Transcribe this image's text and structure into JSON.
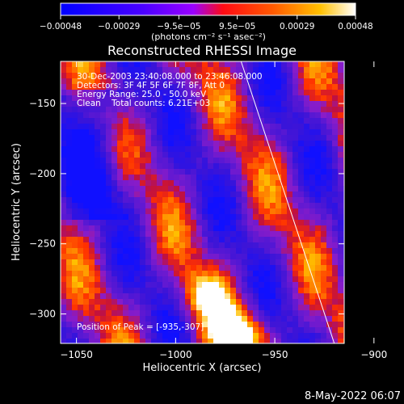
{
  "chart_data": {
    "type": "heatmap",
    "title": "Reconstructed RHESSI Image",
    "xlabel": "Heliocentric X (arcsec)",
    "ylabel": "Heliocentric Y (arcsec)",
    "xlim": [
      -1058,
      -915
    ],
    "ylim": [
      -321,
      -120
    ],
    "x_ticks": [
      -1050,
      -1000,
      -950,
      -900
    ],
    "x_tick_labels": [
      "−1050",
      "−1000",
      "−950",
      "−900"
    ],
    "y_ticks": [
      -150,
      -200,
      -250,
      -300
    ],
    "y_tick_labels": [
      "−150",
      "−200",
      "−250",
      "−300"
    ],
    "colorbar": {
      "range": [
        -0.00048,
        0.00048
      ],
      "ticks": [
        -0.00048,
        -0.00029,
        -9.5e-05,
        9.5e-05,
        0.00029,
        0.00048
      ],
      "tick_labels": [
        "−0.00048",
        "−0.00029",
        "−9.5e−05",
        "9.5e−05",
        "0.00029",
        "0.00048"
      ],
      "unit_label": "(photons cm⁻² s⁻¹ asec⁻²)",
      "colors": [
        "#0000ff",
        "#7a00ff",
        "#ff2a00",
        "#ff9a00",
        "#ffffff"
      ]
    },
    "annotations": [
      "30-Dec-2003 23:40:08.000 to 23:46:08.000",
      "Detectors: 3F 4F 5F 6F 7F 8F, Att 0",
      "Energy Range: 25.0 - 50.0 keV",
      "Clean    Total counts: 6.21E+03"
    ],
    "peak_label": "Position of Peak = [-935,-307]",
    "peak_position": [
      -935,
      -307
    ],
    "limb_line": {
      "x": [
        -967,
        -920
      ],
      "y": [
        -120,
        -321
      ]
    },
    "timestamp": "8-May-2022 06:07"
  }
}
